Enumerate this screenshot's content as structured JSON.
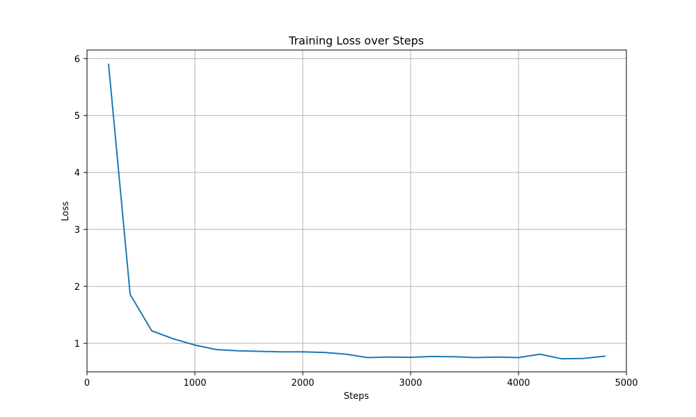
{
  "chart_data": {
    "type": "line",
    "title": "Training Loss over Steps",
    "xlabel": "Steps",
    "ylabel": "Loss",
    "xlim": [
      0,
      5000
    ],
    "ylim": [
      0.5,
      6.15
    ],
    "grid": true,
    "line_color": "#1f77b4",
    "xticks": [
      0,
      1000,
      2000,
      3000,
      4000,
      5000
    ],
    "xtick_labels": [
      "0",
      "1000",
      "2000",
      "3000",
      "4000",
      "5000"
    ],
    "yticks": [
      1,
      2,
      3,
      4,
      5,
      6
    ],
    "ytick_labels": [
      "1",
      "2",
      "3",
      "4",
      "5",
      "6"
    ],
    "series": [
      {
        "x": [
          200,
          400,
          600,
          800,
          1000,
          1200,
          1400,
          1600,
          1800,
          2000,
          2200,
          2400,
          2600,
          2800,
          3000,
          3200,
          3400,
          3600,
          3800,
          4000,
          4200,
          4400,
          4600,
          4800
        ],
        "y": [
          5.9,
          1.86,
          1.22,
          1.08,
          0.97,
          0.89,
          0.87,
          0.86,
          0.85,
          0.85,
          0.84,
          0.81,
          0.75,
          0.76,
          0.755,
          0.77,
          0.765,
          0.75,
          0.76,
          0.75,
          0.81,
          0.73,
          0.735,
          0.775
        ]
      }
    ]
  }
}
